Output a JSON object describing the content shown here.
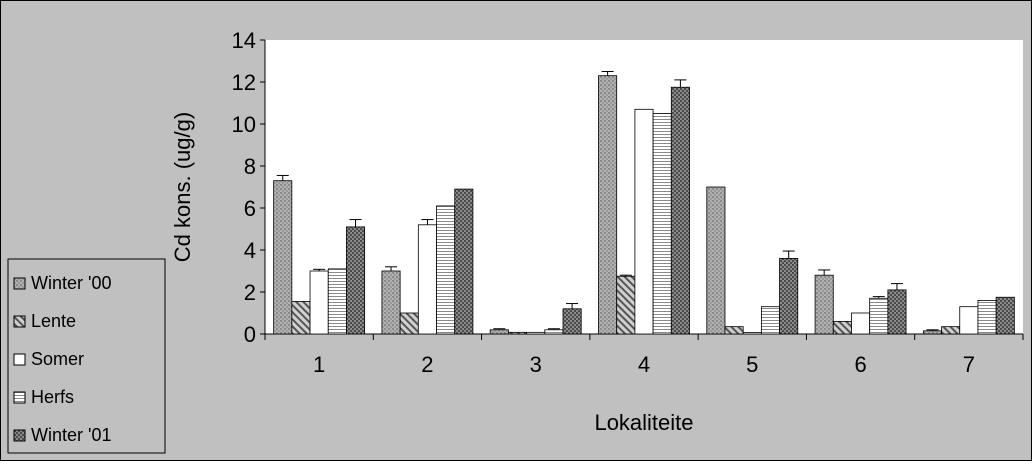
{
  "colors": {
    "background": "#c0c0c0",
    "plot_area": "#ffffff",
    "winter00": "#a6a6a6",
    "lente": "#a6a6a6",
    "somer": "#ffffff",
    "herfs": "#eeeeee",
    "winter01": "#8a8a8a"
  },
  "chart_data": {
    "type": "bar",
    "title": "",
    "xlabel": "Lokaliteite",
    "ylabel": "Cd kons. (ug/g)",
    "ylim": [
      0,
      14
    ],
    "yticks": [
      "0",
      "2",
      "4",
      "6",
      "8",
      "10",
      "12",
      "14"
    ],
    "categories": [
      "1",
      "2",
      "3",
      "4",
      "5",
      "6",
      "7"
    ],
    "grid": false,
    "legend_position": "left",
    "series": [
      {
        "name": "Winter '00",
        "pattern": "dots",
        "values": [
          7.3,
          3.0,
          0.2,
          12.3,
          7.0,
          2.8,
          0.15
        ],
        "errors": [
          0.25,
          0.2,
          0.05,
          0.2,
          0.0,
          0.25,
          0.05
        ]
      },
      {
        "name": "Lente",
        "pattern": "diagonal",
        "values": [
          1.55,
          1.0,
          0.08,
          2.75,
          0.35,
          0.6,
          0.35
        ],
        "errors": [
          0.0,
          0.0,
          0.0,
          0.05,
          0.0,
          0.0,
          0.0
        ]
      },
      {
        "name": "Somer",
        "pattern": "none",
        "values": [
          3.0,
          5.2,
          0.08,
          10.7,
          0.07,
          1.0,
          1.3
        ],
        "errors": [
          0.08,
          0.25,
          0.0,
          0.0,
          0.0,
          0.0,
          0.0
        ]
      },
      {
        "name": "Herfs",
        "pattern": "hlines",
        "values": [
          3.1,
          6.1,
          0.2,
          10.5,
          1.3,
          1.7,
          1.6
        ],
        "errors": [
          0.0,
          0.0,
          0.05,
          0.0,
          0.0,
          0.08,
          0.0
        ]
      },
      {
        "name": "Winter '01",
        "pattern": "cross",
        "values": [
          5.1,
          6.9,
          1.2,
          11.75,
          3.6,
          2.1,
          1.75
        ],
        "errors": [
          0.35,
          0.0,
          0.25,
          0.35,
          0.35,
          0.3,
          0.0
        ]
      }
    ]
  }
}
